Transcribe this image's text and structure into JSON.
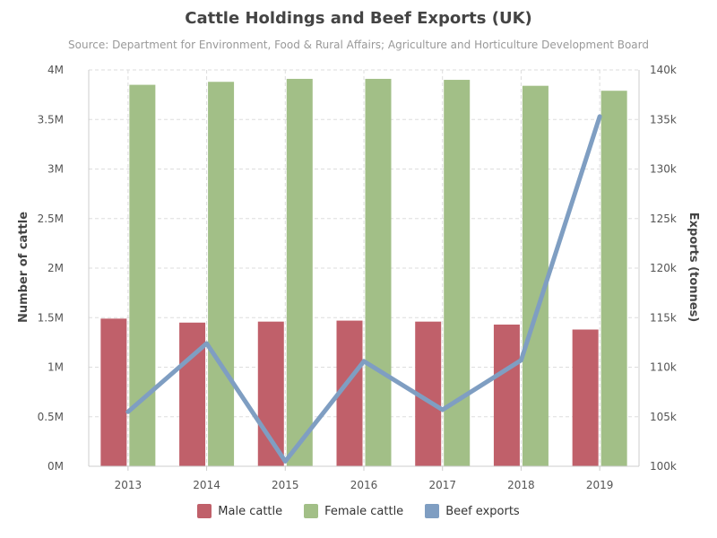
{
  "chart_data": {
    "type": "bar",
    "title": "Cattle Holdings and Beef Exports (UK)",
    "subtitle": "Source: Department for Environment, Food & Rural Affairs; Agriculture and Horticulture Development Board",
    "categories": [
      "2013",
      "2014",
      "2015",
      "2016",
      "2017",
      "2018",
      "2019"
    ],
    "ylabel": "Number of cattle",
    "ylabel_right": "Exports (tonnes)",
    "ylim": [
      0,
      4000000
    ],
    "ylim_right": [
      100000,
      140000
    ],
    "y_ticks": [
      "0M",
      "0.5M",
      "1M",
      "1.5M",
      "2M",
      "2.5M",
      "3M",
      "3.5M",
      "4M"
    ],
    "y_ticks_right": [
      "100k",
      "105k",
      "110k",
      "115k",
      "120k",
      "125k",
      "130k",
      "135k",
      "140k"
    ],
    "grid": true,
    "legend_position": "bottom",
    "series": [
      {
        "name": "Male cattle",
        "type": "bar",
        "axis": "left",
        "color": "#c0606a",
        "values": [
          1490000,
          1450000,
          1460000,
          1470000,
          1460000,
          1430000,
          1380000
        ]
      },
      {
        "name": "Female cattle",
        "type": "bar",
        "axis": "left",
        "color": "#a2bf87",
        "values": [
          3850000,
          3880000,
          3910000,
          3910000,
          3900000,
          3840000,
          3790000
        ]
      },
      {
        "name": "Beef exports",
        "type": "line",
        "axis": "right",
        "color": "#7f9ec2",
        "values": [
          105500,
          112400,
          100500,
          110600,
          105700,
          110700,
          135300
        ]
      }
    ]
  }
}
